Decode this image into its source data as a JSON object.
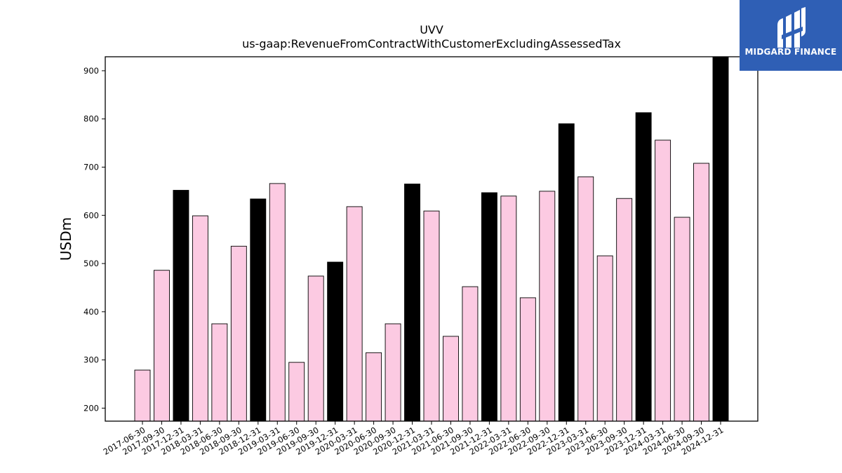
{
  "brand": {
    "name": "MIDGARD FINANCE",
    "color": "#2f5fb5",
    "icon": "midgard-logo-icon"
  },
  "chart_data": {
    "type": "bar",
    "title": "UVV",
    "subtitle": "us-gaap:RevenueFromContractWithCustomerExcludingAssessedTax",
    "xlabel": "",
    "ylabel": "USDm",
    "ylim": [
      173,
      929
    ],
    "yticks": [
      200,
      300,
      400,
      500,
      600,
      700,
      800,
      900
    ],
    "grid": false,
    "colors": {
      "quarter": "#fccae2",
      "year_end": "#000000",
      "edge": "#000000"
    },
    "categories": [
      "2017-06-30",
      "2017-09-30",
      "2017-12-31",
      "2018-03-31",
      "2018-06-30",
      "2018-09-30",
      "2018-12-31",
      "2019-03-31",
      "2019-06-30",
      "2019-09-30",
      "2019-12-31",
      "2020-03-31",
      "2020-06-30",
      "2020-09-30",
      "2020-12-31",
      "2021-03-31",
      "2021-06-30",
      "2021-09-30",
      "2021-12-31",
      "2022-03-31",
      "2022-06-30",
      "2022-09-30",
      "2022-12-31",
      "2023-03-31",
      "2023-06-30",
      "2023-09-30",
      "2023-12-31",
      "2024-03-31",
      "2024-06-30",
      "2024-09-30",
      "2024-12-31"
    ],
    "values": [
      279,
      486,
      652,
      599,
      375,
      536,
      634,
      666,
      295,
      474,
      503,
      618,
      315,
      375,
      665,
      609,
      349,
      452,
      647,
      640,
      429,
      650,
      790,
      680,
      516,
      635,
      813,
      756,
      596,
      708,
      937
    ],
    "highlight": [
      false,
      false,
      true,
      false,
      false,
      false,
      true,
      false,
      false,
      false,
      true,
      false,
      false,
      false,
      true,
      false,
      false,
      false,
      true,
      false,
      false,
      false,
      true,
      false,
      false,
      false,
      true,
      false,
      false,
      false,
      true
    ]
  }
}
